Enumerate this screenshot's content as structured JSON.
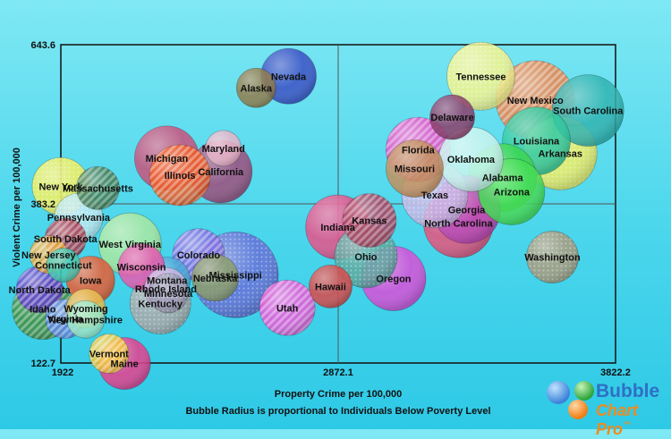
{
  "chart_data": {
    "type": "bubble",
    "xlabel": "Property Crime per 100,000",
    "ylabel": "Violent Crime per 100,000",
    "caption": "Bubble Radius is proportional to Individuals Below Poverty Level",
    "xlim": [
      1922,
      3822.2
    ],
    "ylim": [
      122.7,
      643.6
    ],
    "x_ticks": [
      "1922",
      "2872.1",
      "3822.2"
    ],
    "y_ticks": [
      "122.7",
      "383.2",
      "643.6"
    ],
    "grid": "center crosshair lines",
    "points": [
      {
        "name": "Tennessee",
        "x": 3361,
        "y": 592,
        "size": 38,
        "color": "#f3f38b",
        "pattern": "dots"
      },
      {
        "name": "Nevada",
        "x": 2702,
        "y": 592,
        "size": 31,
        "color": "#3a4fc4",
        "pattern": "none"
      },
      {
        "name": "Alaska",
        "x": 2591,
        "y": 573,
        "size": 22,
        "color": "#8f7a4a",
        "pattern": "none"
      },
      {
        "name": "New Mexico",
        "x": 3547,
        "y": 553,
        "size": 44,
        "color": "#e8834a",
        "pattern": "stripes"
      },
      {
        "name": "South Carolina",
        "x": 3728,
        "y": 536,
        "size": 40,
        "color": "#2fb3b0",
        "pattern": "none"
      },
      {
        "name": "Delaware",
        "x": 3263,
        "y": 525,
        "size": 25,
        "color": "#8a3c6a",
        "pattern": "none"
      },
      {
        "name": "Louisiana",
        "x": 3551,
        "y": 486,
        "size": 38,
        "color": "#2ec9a0",
        "pattern": "none"
      },
      {
        "name": "Florida",
        "x": 3146,
        "y": 472,
        "size": 36,
        "color": "#e850c8",
        "pattern": "stripes"
      },
      {
        "name": "Arkansas",
        "x": 3633,
        "y": 466,
        "size": 41,
        "color": "#f1ee62",
        "pattern": "dots"
      },
      {
        "name": "Oklahoma",
        "x": 3327,
        "y": 456,
        "size": 36,
        "color": "#c8f4ef",
        "pattern": "none"
      },
      {
        "name": "Missouri",
        "x": 3134,
        "y": 441,
        "size": 32,
        "color": "#c28f5c",
        "pattern": "none"
      },
      {
        "name": "Alabama",
        "x": 3435,
        "y": 426,
        "size": 38,
        "color": "#39d650",
        "pattern": "none"
      },
      {
        "name": "Arizona",
        "x": 3466,
        "y": 403,
        "size": 37,
        "color": "#44dd55",
        "pattern": "none"
      },
      {
        "name": "Texas",
        "x": 3203,
        "y": 398,
        "size": 37,
        "color": "#c8b8e8",
        "pattern": "dots"
      },
      {
        "name": "Georgia",
        "x": 3312,
        "y": 374,
        "size": 38,
        "color": "#b84ab8",
        "pattern": "none"
      },
      {
        "name": "North Carolina",
        "x": 3284,
        "y": 352,
        "size": 39,
        "color": "#e8507a",
        "pattern": "none"
      },
      {
        "name": "Kansas",
        "x": 2979,
        "y": 356,
        "size": 30,
        "color": "#a83c5c",
        "pattern": "stripes"
      },
      {
        "name": "Indiana",
        "x": 2871,
        "y": 345,
        "size": 36,
        "color": "#e85088",
        "pattern": "none"
      },
      {
        "name": "Washington",
        "x": 3606,
        "y": 296,
        "size": 29,
        "color": "#a89a7c",
        "pattern": "dots"
      },
      {
        "name": "Ohio",
        "x": 2967,
        "y": 297,
        "size": 35,
        "color": "#5ca8a0",
        "pattern": "dots"
      },
      {
        "name": "Oregon",
        "x": 3062,
        "y": 261,
        "size": 36,
        "color": "#d84cd8",
        "pattern": "none"
      },
      {
        "name": "Hawaii",
        "x": 2846,
        "y": 248,
        "size": 24,
        "color": "#d84848",
        "pattern": "none"
      },
      {
        "name": "Utah",
        "x": 2698,
        "y": 213,
        "size": 31,
        "color": "#e858d8",
        "pattern": "stripes"
      },
      {
        "name": "Mississippi",
        "x": 2520,
        "y": 267,
        "size": 48,
        "color": "#6470d8",
        "pattern": "dots"
      },
      {
        "name": "Nebraska",
        "x": 2451,
        "y": 262,
        "size": 26,
        "color": "#8a9c6a",
        "pattern": "none"
      },
      {
        "name": "Colorado",
        "x": 2394,
        "y": 300,
        "size": 29,
        "color": "#7b6ae0",
        "pattern": "stripes"
      },
      {
        "name": "Montana",
        "x": 2286,
        "y": 258,
        "size": 26,
        "color": "#4aa8d8",
        "pattern": "none"
      },
      {
        "name": "Rhode Island",
        "x": 2282,
        "y": 244,
        "size": 24,
        "color": "#c8b4e0",
        "pattern": "none"
      },
      {
        "name": "Minnesota",
        "x": 2290,
        "y": 237,
        "size": 22,
        "color": "#9c9cb4",
        "pattern": "dots"
      },
      {
        "name": "Kentucky",
        "x": 2263,
        "y": 220,
        "size": 34,
        "color": "#a8a8a8",
        "pattern": "dots"
      },
      {
        "name": "Wisconsin",
        "x": 2198,
        "y": 280,
        "size": 26,
        "color": "#e858b0",
        "pattern": "none"
      },
      {
        "name": "West Virginia",
        "x": 2159,
        "y": 317,
        "size": 35,
        "color": "#a8e8a0",
        "pattern": "none"
      },
      {
        "name": "Iowa",
        "x": 2024,
        "y": 258,
        "size": 27,
        "color": "#e85a30",
        "pattern": "none"
      },
      {
        "name": "Michigan",
        "x": 2285,
        "y": 458,
        "size": 36,
        "color": "#c8507a",
        "pattern": "none"
      },
      {
        "name": "Illinois",
        "x": 2330,
        "y": 430,
        "size": 34,
        "color": "#f05a22",
        "pattern": "stripes"
      },
      {
        "name": "Maryland",
        "x": 2479,
        "y": 474,
        "size": 20,
        "color": "#e8b4c8",
        "pattern": "none"
      },
      {
        "name": "California",
        "x": 2470,
        "y": 436,
        "size": 35,
        "color": "#9c4a7a",
        "pattern": "none"
      },
      {
        "name": "New York",
        "x": 1922,
        "y": 412,
        "size": 32,
        "color": "#f3f05c",
        "pattern": "dots"
      },
      {
        "name": "Massachusetts",
        "x": 2049,
        "y": 409,
        "size": 24,
        "color": "#3c7a50",
        "pattern": "stripes"
      },
      {
        "name": "Pennsylvania",
        "x": 1983,
        "y": 361,
        "size": 27,
        "color": "#b8e8f0",
        "pattern": "dots"
      },
      {
        "name": "South Dakota",
        "x": 1938,
        "y": 326,
        "size": 23,
        "color": "#a8384c",
        "pattern": "stripes"
      },
      {
        "name": "New Jersey",
        "x": 1880,
        "y": 300,
        "size": 21,
        "color": "#e8a838",
        "pattern": "stripes"
      },
      {
        "name": "Connecticut",
        "x": 1931,
        "y": 283,
        "size": 19,
        "color": "#48c8b0",
        "pattern": "none"
      },
      {
        "name": "North Dakota",
        "x": 1849,
        "y": 243,
        "size": 26,
        "color": "#5a3cc8",
        "pattern": "stripes"
      },
      {
        "name": "Idaho",
        "x": 1860,
        "y": 211,
        "size": 34,
        "color": "#3c8c3c",
        "pattern": "stripes"
      },
      {
        "name": "Virginia",
        "x": 1937,
        "y": 195,
        "size": 22,
        "color": "#5a8ae8",
        "pattern": "stripes"
      },
      {
        "name": "Wyoming",
        "x": 2008,
        "y": 212,
        "size": 22,
        "color": "#e8c050",
        "pattern": "none"
      },
      {
        "name": "New Hampshire",
        "x": 2007,
        "y": 194,
        "size": 21,
        "color": "#9ce8c8",
        "pattern": "none"
      },
      {
        "name": "Vermont",
        "x": 2087,
        "y": 138,
        "size": 22,
        "color": "#f3c838",
        "pattern": "stripes"
      },
      {
        "name": "Maine",
        "x": 2140,
        "y": 122,
        "size": 29,
        "color": "#e83c8c",
        "pattern": "none"
      }
    ]
  },
  "brand": {
    "line1": "Bubble",
    "line2": "Chart Pro",
    "tm": "™"
  }
}
